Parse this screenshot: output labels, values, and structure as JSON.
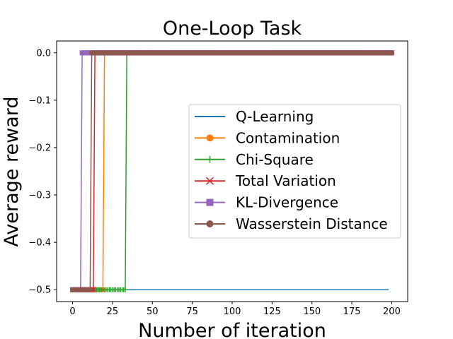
{
  "chart_data": {
    "type": "line",
    "title": "One-Loop Task",
    "xlabel": "Number of iteration",
    "ylabel": "Average reward",
    "xlim": [
      -10,
      210
    ],
    "ylim": [
      -0.525,
      0.025
    ],
    "xticks": [
      0,
      25,
      50,
      75,
      100,
      125,
      150,
      175,
      200
    ],
    "xtick_labels": [
      "0",
      "25",
      "50",
      "75",
      "100",
      "125",
      "150",
      "175",
      "200"
    ],
    "yticks": [
      0.0,
      -0.1,
      -0.2,
      -0.3,
      -0.4,
      -0.5
    ],
    "ytick_labels": [
      "0.0",
      "−0.1",
      "−0.2",
      "−0.3",
      "−0.4",
      "−0.5"
    ],
    "grid": false,
    "legend_position": "center-right",
    "series": [
      {
        "name": "Q-Learning",
        "color": "#1f77b4",
        "marker": "none",
        "switch_x": null,
        "x_max": 198
      },
      {
        "name": "Contamination",
        "color": "#ff7f0e",
        "marker": "circle",
        "switch_x": 20,
        "x_max": 200
      },
      {
        "name": "Chi-Square",
        "color": "#2ca02c",
        "marker": "plus",
        "switch_x": 34,
        "x_max": 200
      },
      {
        "name": "Total Variation",
        "color": "#d62728",
        "marker": "x",
        "switch_x": 14,
        "x_max": 200
      },
      {
        "name": "KL-Divergence",
        "color": "#9467bd",
        "marker": "square",
        "switch_x": 6,
        "x_max": 200
      },
      {
        "name": "Wasserstein Distance",
        "color": "#8c564b",
        "marker": "circle",
        "switch_x": 12,
        "x_max": 200
      }
    ]
  }
}
